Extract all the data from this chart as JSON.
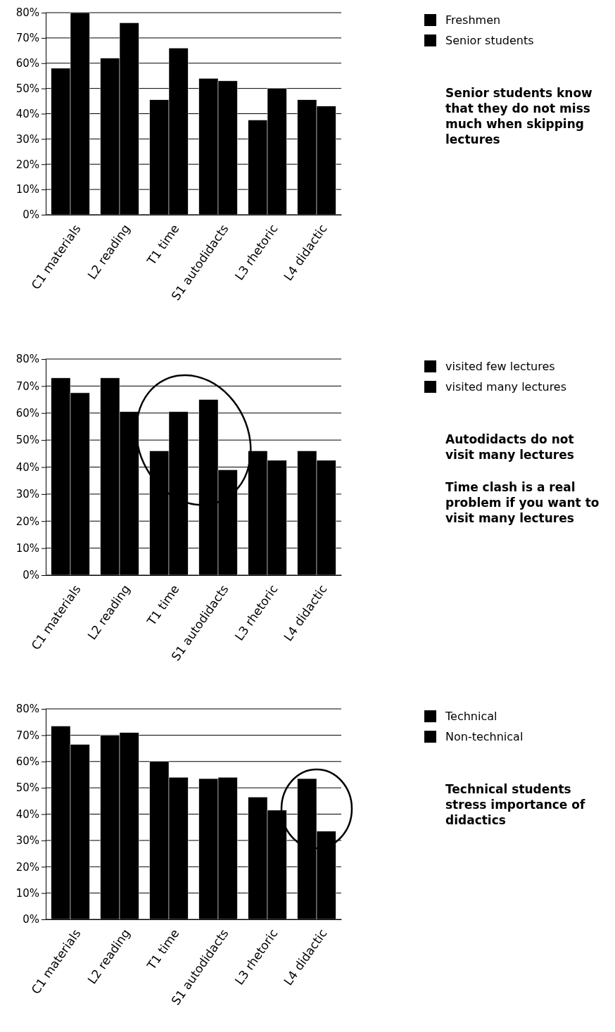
{
  "chart_data": [
    {
      "type": "bar",
      "categories": [
        "C1  materials",
        "L2  reading",
        "T1  time",
        "S1  autodidacts",
        "L3  rhetoric",
        "L4  didactic"
      ],
      "series": [
        {
          "name": "Freshmen",
          "color": "#000000",
          "values": [
            58,
            62,
            45.5,
            54,
            37.5,
            45.5
          ]
        },
        {
          "name": "Senior students",
          "color": "#000000",
          "values": [
            80,
            76,
            66,
            53,
            50,
            43
          ]
        }
      ],
      "ylim": [
        0,
        80
      ],
      "yticks": [
        {
          "value": 0,
          "label": "0%"
        },
        {
          "value": 10,
          "label": "10%"
        },
        {
          "value": 20,
          "label": "20%"
        },
        {
          "value": 30,
          "label": "30%"
        },
        {
          "value": 40,
          "label": "40%"
        },
        {
          "value": 50,
          "label": "50%"
        },
        {
          "value": 60,
          "label": "60%"
        },
        {
          "value": 70,
          "label": "70%"
        },
        {
          "value": 80,
          "label": "80%"
        }
      ],
      "grid": "y",
      "legend": "top right",
      "annotations": [
        "Senior students know that they do not miss much when skipping lectures"
      ]
    },
    {
      "type": "bar",
      "categories": [
        "C1  materials",
        "L2  reading",
        "T1  time",
        "S1  autodidacts",
        "L3  rhetoric",
        "L4  didactic"
      ],
      "series": [
        {
          "name": "visited few lectures",
          "color": "#000000",
          "values": [
            73,
            73,
            46,
            65,
            46,
            46
          ]
        },
        {
          "name": "visited many lectures",
          "color": "#000000",
          "values": [
            67.5,
            60.5,
            60.5,
            39,
            42.5,
            42.5
          ]
        }
      ],
      "ylim": [
        0,
        80
      ],
      "yticks": [
        {
          "value": 0,
          "label": "0%"
        },
        {
          "value": 10,
          "label": "10%"
        },
        {
          "value": 20,
          "label": "20%"
        },
        {
          "value": 30,
          "label": "30%"
        },
        {
          "value": 40,
          "label": "40%"
        },
        {
          "value": 50,
          "label": "50%"
        },
        {
          "value": 60,
          "label": "60%"
        },
        {
          "value": 70,
          "label": "70%"
        },
        {
          "value": 80,
          "label": "80%"
        }
      ],
      "grid": "y",
      "legend": "top right",
      "annotations": [
        "Autodidacts do not visit many lectures",
        "Time clash is a real problem if you want to visit many lectures"
      ]
    },
    {
      "type": "bar",
      "categories": [
        "C1  materials",
        "L2  reading",
        "T1  time",
        "S1  autodidacts",
        "L3  rhetoric",
        "L4  didactic"
      ],
      "series": [
        {
          "name": "Technical",
          "color": "#000000",
          "values": [
            73.5,
            70,
            60,
            53.5,
            46.5,
            53.5
          ]
        },
        {
          "name": "Non-technical",
          "color": "#000000",
          "values": [
            66.5,
            71,
            54,
            54,
            41.5,
            33.5
          ]
        }
      ],
      "ylim": [
        0,
        80
      ],
      "yticks": [
        {
          "value": 0,
          "label": "0%"
        },
        {
          "value": 10,
          "label": "10%"
        },
        {
          "value": 20,
          "label": "20%"
        },
        {
          "value": 30,
          "label": "30%"
        },
        {
          "value": 40,
          "label": "40%"
        },
        {
          "value": 50,
          "label": "50%"
        },
        {
          "value": 60,
          "label": "60%"
        },
        {
          "value": 70,
          "label": "70%"
        },
        {
          "value": 80,
          "label": "80%"
        }
      ],
      "grid": "y",
      "legend": "top right",
      "annotations": [
        "Technical students stress importance of didactics"
      ]
    }
  ]
}
